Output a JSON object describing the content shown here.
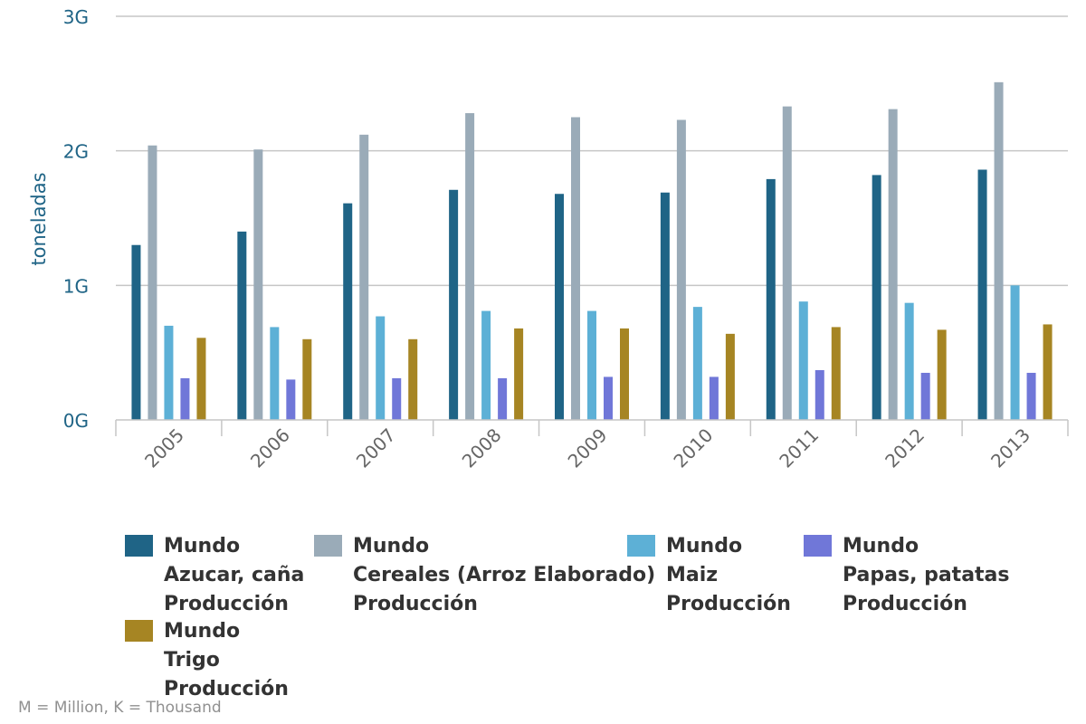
{
  "chart_data": {
    "type": "bar",
    "ylabel": "toneladas",
    "y_ticks": [
      "0G",
      "1G",
      "2G",
      "3G"
    ],
    "ylim": [
      0,
      3
    ],
    "y_unit": "G",
    "grid": true,
    "legend_position": "bottom",
    "categories": [
      "2005",
      "2006",
      "2007",
      "2008",
      "2009",
      "2010",
      "2011",
      "2012",
      "2013"
    ],
    "series": [
      {
        "name_lines": [
          "Mundo",
          "Azucar, caña",
          "Producción"
        ],
        "color": "#1f6486",
        "values": [
          1.3,
          1.4,
          1.61,
          1.71,
          1.68,
          1.69,
          1.79,
          1.82,
          1.86
        ]
      },
      {
        "name_lines": [
          "Mundo",
          "Cereales (Arroz Elaborado)",
          "Producción"
        ],
        "color": "#9aabb8",
        "values": [
          2.04,
          2.01,
          2.12,
          2.28,
          2.25,
          2.23,
          2.33,
          2.31,
          2.51
        ]
      },
      {
        "name_lines": [
          "Mundo",
          "Maiz",
          "Producción"
        ],
        "color": "#5db0d6",
        "values": [
          0.7,
          0.69,
          0.77,
          0.81,
          0.81,
          0.84,
          0.88,
          0.87,
          1.0
        ]
      },
      {
        "name_lines": [
          "Mundo",
          "Papas, patatas",
          "Producción"
        ],
        "color": "#7077d8",
        "values": [
          0.31,
          0.3,
          0.31,
          0.31,
          0.32,
          0.32,
          0.37,
          0.35,
          0.35
        ]
      },
      {
        "name_lines": [
          "Mundo",
          "Trigo",
          "Producción"
        ],
        "color": "#a68523",
        "values": [
          0.61,
          0.6,
          0.6,
          0.68,
          0.68,
          0.64,
          0.69,
          0.67,
          0.71
        ]
      }
    ]
  },
  "footnote": "M = Million, K = Thousand"
}
